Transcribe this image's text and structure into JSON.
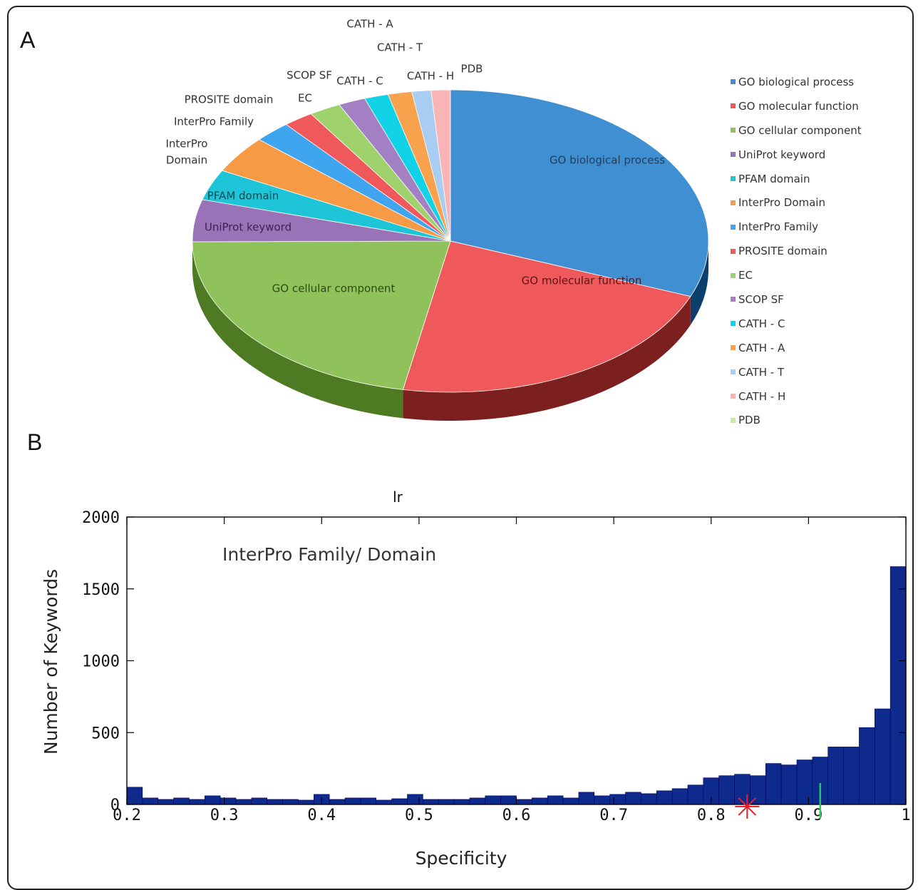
{
  "panel_a_label": "A",
  "panel_b_label": "B",
  "chart_data": [
    {
      "type": "pie",
      "slices": [
        {
          "label": "GO biological process",
          "value": 31.0,
          "color": "#3f8fd2",
          "dark": "#0d3f6e"
        },
        {
          "label": "GO molecular function",
          "value": 22.0,
          "color": "#f0595c",
          "dark": "#7c1f1f"
        },
        {
          "label": "GO cellular component",
          "value": 22.0,
          "color": "#8fc25a",
          "dark": "#4d7a22"
        },
        {
          "label": "UniProt keyword",
          "value": 4.5,
          "color": "#9a72b8",
          "dark": "#533573"
        },
        {
          "label": "PFAM domain",
          "value": 3.3,
          "color": "#1ec4d8",
          "dark": "#0a6a76"
        },
        {
          "label": "InterPro Domain",
          "value": 4.0,
          "color": "#f79a45",
          "dark": "#8a4b12"
        },
        {
          "label": "InterPro Family",
          "value": 2.3,
          "color": "#3ea5ee",
          "dark": "#1a5a8a"
        },
        {
          "label": "PROSITE domain",
          "value": 1.9,
          "color": "#f0595c",
          "dark": "#7c1f1f"
        },
        {
          "label": "EC",
          "value": 2.0,
          "color": "#9fd26c",
          "dark": "#4d7a22"
        },
        {
          "label": "SCOP SF",
          "value": 1.7,
          "color": "#a37fc3",
          "dark": "#533573"
        },
        {
          "label": "CATH - C",
          "value": 1.5,
          "color": "#12d2e8",
          "dark": "#0a6a76"
        },
        {
          "label": "CATH - A",
          "value": 1.5,
          "color": "#f8a24e",
          "dark": "#8a4b12"
        },
        {
          "label": "CATH - T",
          "value": 1.2,
          "color": "#a9cdf2",
          "dark": "#4a6f96"
        },
        {
          "label": "CATH - H",
          "value": 1.2,
          "color": "#f9b4b6",
          "dark": "#8a5051"
        },
        {
          "label": "PDB",
          "value": 0.0,
          "color": "#c8e6a6",
          "dark": "#5f7f3f"
        }
      ],
      "slice_labels": [
        {
          "text": "GO biological process",
          "color": "#1f3f60"
        },
        {
          "text": "GO molecular function",
          "color": "#5a1515"
        },
        {
          "text": "GO cellular component",
          "color": "#2f4a15"
        },
        {
          "text": "UniProt keyword",
          "color": "#3b2355"
        },
        {
          "text": "PFAM domain",
          "color": "#0c4a52"
        },
        {
          "text": "InterPro",
          "color": "#333333"
        },
        {
          "text": "Domain",
          "color": "#333333"
        },
        {
          "text": "InterPro Family",
          "color": "#333333"
        },
        {
          "text": "PROSITE domain",
          "color": "#333333"
        },
        {
          "text": "EC",
          "color": "#333333"
        },
        {
          "text": "SCOP SF",
          "color": "#333333"
        },
        {
          "text": "CATH - C",
          "color": "#333333"
        },
        {
          "text": "CATH - A",
          "color": "#333333"
        },
        {
          "text": "CATH - T",
          "color": "#333333"
        },
        {
          "text": "CATH - H",
          "color": "#333333"
        },
        {
          "text": "PDB",
          "color": "#333333"
        }
      ],
      "legend_placement": "right"
    },
    {
      "type": "bar",
      "title": "lr",
      "annotation": "InterPro Family/ Domain",
      "xlabel": "Specificity",
      "ylabel": "Number of Keywords",
      "xlim": [
        0.2,
        1.0
      ],
      "ylim": [
        0,
        2000
      ],
      "xticks": [
        "0.2",
        "0.3",
        "0.4",
        "0.5",
        "0.6",
        "0.7",
        "0.8",
        "0.9",
        "1"
      ],
      "yticks": [
        "0",
        "500",
        "1000",
        "1500",
        "2000"
      ],
      "bin_width": 0.016,
      "bin_start": 0.2,
      "values": [
        120,
        45,
        35,
        45,
        35,
        60,
        45,
        35,
        45,
        35,
        35,
        30,
        70,
        35,
        45,
        45,
        30,
        40,
        70,
        35,
        35,
        35,
        45,
        60,
        60,
        35,
        45,
        60,
        45,
        85,
        60,
        70,
        85,
        75,
        95,
        110,
        135,
        185,
        200,
        210,
        200,
        285,
        275,
        310,
        330,
        400,
        400,
        535,
        665,
        1655
      ],
      "bar_color": "#0d2a8c",
      "markers": [
        {
          "type": "star",
          "x": 0.837,
          "color": "#e8202a"
        },
        {
          "type": "tick",
          "x": 0.912,
          "color": "#1bcf5a"
        }
      ]
    }
  ]
}
